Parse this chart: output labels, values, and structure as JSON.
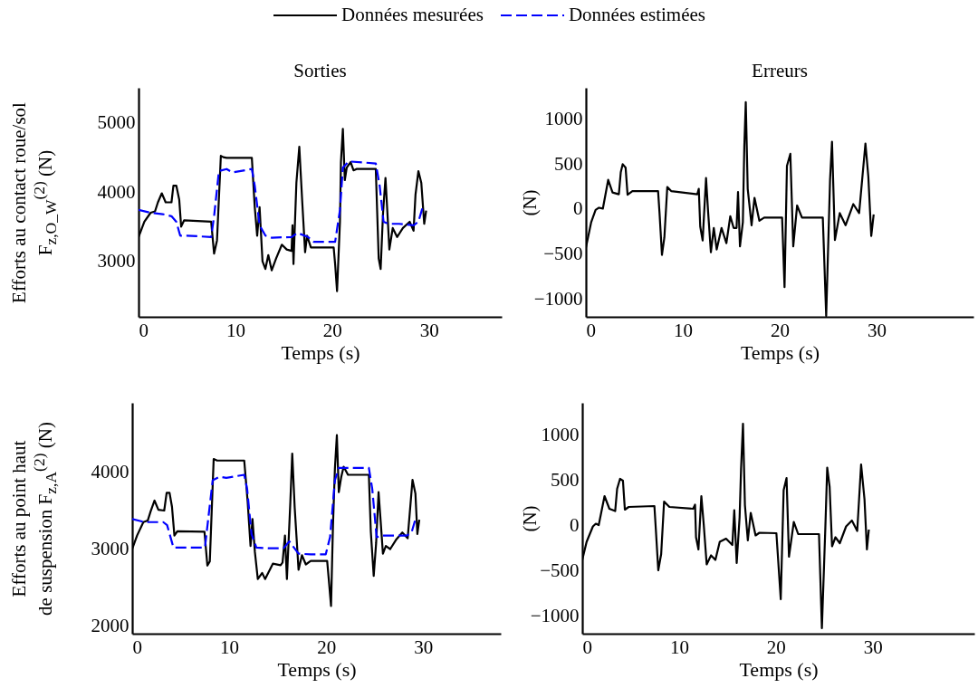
{
  "chart_data": [
    {
      "type": "line",
      "title": "Sorties",
      "xlabel": "Temps (s)",
      "ylabel": "Efforts au contact roue/sol\nF$_{z,O_W}$$^{(2)}$ (N)",
      "xlim": [
        0,
        37.5
      ],
      "xticks": [
        0,
        10,
        20,
        30
      ],
      "ylim": [
        2200,
        5500
      ],
      "yticks": [
        3000,
        4000,
        5000
      ],
      "grid": false,
      "legend": "top",
      "series": [
        {
          "name": "Données mesurées",
          "color": "#000000",
          "line_style": "solid",
          "x": [
            0,
            0.6,
            1.25,
            1.7,
            2.0,
            2.4,
            2.8,
            3.4,
            3.6,
            3.9,
            4.2,
            4.4,
            4.7,
            7.5,
            7.8,
            8.1,
            8.5,
            8.75,
            9.1,
            11.7,
            12.0,
            12.25,
            12.5,
            12.8,
            13.1,
            13.4,
            13.75,
            14.2,
            14.8,
            15.3,
            15.8,
            15.9,
            16.0,
            16.3,
            16.6,
            16.9,
            17.2,
            17.4,
            17.8,
            18.3,
            20.15,
            20.3,
            20.5,
            20.8,
            20.9,
            21.1,
            21.3,
            21.5,
            21.9,
            22.2,
            22.5,
            24.5,
            24.8,
            25.0,
            25.25,
            25.5,
            25.7,
            25.9,
            26.25,
            26.7,
            27.3,
            28.0,
            28.4,
            28.6,
            28.9,
            29.2,
            29.5,
            29.7
          ],
          "values": [
            3350,
            3570,
            3700,
            3720,
            3850,
            3980,
            3850,
            3850,
            4090,
            4090,
            3890,
            3500,
            3590,
            3570,
            3110,
            3300,
            4520,
            4500,
            4490,
            4490,
            3780,
            3370,
            3780,
            3000,
            2890,
            3090,
            2870,
            3040,
            3240,
            3170,
            3150,
            3520,
            2960,
            4130,
            4650,
            3870,
            3130,
            3370,
            3200,
            3200,
            3200,
            2960,
            2570,
            3570,
            4430,
            4910,
            4170,
            4350,
            4430,
            4310,
            4330,
            4330,
            3040,
            2890,
            3700,
            4200,
            3700,
            3170,
            3480,
            3350,
            3480,
            3570,
            3440,
            3960,
            4300,
            4130,
            3540,
            3730
          ]
        },
        {
          "name": "Données estimées",
          "color": "#0000ff",
          "line_style": "dashed",
          "x": [
            0,
            1.25,
            2.5,
            3.4,
            3.9,
            4.3,
            5,
            7.5,
            7.8,
            8.3,
            9.1,
            9.7,
            11.7,
            12.0,
            12.5,
            13.1,
            13.75,
            15.8,
            16.4,
            17.5,
            18.1,
            20.3,
            20.8,
            21.1,
            21.7,
            24.5,
            24.9,
            25.3,
            25.8,
            26.9,
            28.4,
            28.9,
            29.3
          ],
          "values": [
            3740,
            3700,
            3680,
            3650,
            3570,
            3370,
            3370,
            3350,
            3650,
            4300,
            4330,
            4280,
            4330,
            4090,
            3520,
            3370,
            3340,
            3350,
            3410,
            3350,
            3280,
            3280,
            3740,
            4350,
            4440,
            4410,
            4090,
            3570,
            3540,
            3540,
            3520,
            3570,
            3760
          ]
        }
      ]
    },
    {
      "type": "line",
      "title": "Erreurs",
      "xlabel": "Temps (s)",
      "ylabel": "(N)",
      "xlim": [
        0,
        40
      ],
      "xticks": [
        0,
        10,
        20,
        30
      ],
      "ylim": [
        -1200,
        1350
      ],
      "yticks": [
        -1000,
        -500,
        0,
        500,
        1000
      ],
      "grid": false,
      "series": [
        {
          "color": "#000000",
          "line_style": "solid",
          "x": [
            0,
            0.55,
            1.0,
            1.35,
            1.75,
            2.3,
            2.75,
            3.4,
            3.6,
            3.8,
            4.1,
            4.3,
            4.8,
            7.45,
            7.6,
            7.85,
            8.1,
            8.4,
            8.8,
            11.5,
            11.65,
            11.8,
            12.05,
            12.4,
            12.6,
            12.9,
            13.2,
            13.5,
            14.0,
            14.5,
            14.9,
            15.25,
            15.55,
            15.7,
            15.9,
            16.2,
            16.35,
            16.5,
            16.7,
            17.1,
            17.4,
            17.9,
            18.4,
            20.25,
            20.5,
            20.75,
            21.1,
            21.4,
            21.8,
            22.3,
            24.45,
            24.8,
            25.2,
            25.4,
            25.7,
            26.2,
            26.8,
            27.6,
            28.2,
            28.85,
            29.15,
            29.45,
            29.7
          ],
          "values": [
            -430,
            -145,
            -10,
            15,
            5,
            325,
            185,
            165,
            410,
            500,
            460,
            160,
            200,
            200,
            -45,
            -510,
            -315,
            245,
            200,
            165,
            225,
            -195,
            -350,
            345,
            -10,
            -480,
            -210,
            -450,
            -210,
            -380,
            -80,
            -210,
            -210,
            190,
            -415,
            -145,
            700,
            1190,
            225,
            -180,
            125,
            -130,
            -95,
            -95,
            -870,
            480,
            615,
            -415,
            40,
            -95,
            -95,
            -1190,
            330,
            750,
            -345,
            -45,
            -180,
            55,
            -45,
            730,
            360,
            -300,
            -60
          ]
        }
      ]
    },
    {
      "type": "line",
      "xlabel": "Temps (s)",
      "ylabel": "Efforts au point haut\nde suspension F$_{z,A}$$^{(2)}$ (N)",
      "xlim": [
        0,
        38
      ],
      "xticks": [
        0,
        10,
        20,
        30
      ],
      "ylim": [
        1900,
        4900
      ],
      "yticks": [
        2000,
        3000,
        4000
      ],
      "grid": false,
      "series": [
        {
          "color": "#000000",
          "line_style": "solid",
          "x": [
            0,
            0.5,
            1.15,
            1.6,
            1.9,
            2.3,
            2.7,
            3.3,
            3.55,
            3.85,
            4.1,
            4.35,
            4.65,
            7.45,
            7.75,
            8.0,
            8.4,
            8.75,
            11.55,
            11.9,
            12.2,
            12.4,
            12.65,
            12.95,
            13.4,
            13.7,
            14.5,
            15.3,
            15.5,
            15.75,
            15.95,
            16.3,
            16.5,
            16.75,
            17.15,
            17.5,
            17.9,
            18.4,
            20.1,
            20.25,
            20.5,
            20.7,
            20.9,
            21.1,
            21.3,
            21.55,
            21.8,
            22.25,
            24.4,
            24.6,
            24.9,
            25.15,
            25.4,
            25.6,
            25.85,
            26.15,
            26.6,
            27.2,
            27.85,
            28.4,
            28.9,
            29.2,
            29.4,
            29.6
          ],
          "values": [
            3000,
            3175,
            3350,
            3370,
            3490,
            3630,
            3510,
            3500,
            3730,
            3730,
            3550,
            3175,
            3230,
            3225,
            2785,
            2840,
            4170,
            4150,
            4150,
            3620,
            3040,
            3390,
            2960,
            2610,
            2690,
            2610,
            2810,
            2790,
            2825,
            3175,
            2610,
            3600,
            4240,
            3545,
            2730,
            2920,
            2800,
            2845,
            2845,
            2630,
            2260,
            3310,
            4050,
            4480,
            3740,
            3935,
            4070,
            3965,
            3965,
            3230,
            2650,
            3080,
            3740,
            3390,
            2940,
            3040,
            3000,
            3120,
            3215,
            3140,
            3900,
            3720,
            3195,
            3380
          ]
        },
        {
          "color": "#0000ff",
          "line_style": "dashed",
          "x": [
            0,
            1.3,
            3.2,
            3.6,
            4.25,
            4.7,
            7.5,
            7.8,
            8.3,
            9.05,
            9.7,
            11.55,
            11.85,
            12.3,
            12.8,
            14.0,
            15.6,
            16.2,
            17.15,
            18.4,
            19.95,
            20.4,
            20.9,
            21.3,
            24.4,
            24.75,
            25.2,
            25.85,
            28.3,
            28.8,
            29.25
          ],
          "values": [
            3390,
            3350,
            3350,
            3310,
            3020,
            3020,
            3020,
            3350,
            3895,
            3940,
            3925,
            3965,
            3780,
            3195,
            3020,
            3010,
            3010,
            3100,
            2940,
            2930,
            2930,
            3155,
            3895,
            4055,
            4055,
            3780,
            3155,
            3175,
            3175,
            3215,
            3410
          ]
        }
      ]
    },
    {
      "type": "line",
      "xlabel": "Temps (s)",
      "ylabel": "(N)",
      "xlim": [
        0,
        40.5
      ],
      "xticks": [
        0,
        10,
        20,
        30
      ],
      "ylim": [
        -1200,
        1350
      ],
      "yticks": [
        -1000,
        -500,
        0,
        500,
        1000
      ],
      "grid": false,
      "series": [
        {
          "color": "#000000",
          "line_style": "solid",
          "x": [
            0,
            0.45,
            1.1,
            1.4,
            1.7,
            2.3,
            2.8,
            3.4,
            3.6,
            3.9,
            4.2,
            4.4,
            4.8,
            7.45,
            7.6,
            7.85,
            8.15,
            8.45,
            9.0,
            11.45,
            11.65,
            11.75,
            12.0,
            12.3,
            12.55,
            12.85,
            13.3,
            13.75,
            14.2,
            14.85,
            15.5,
            15.7,
            15.95,
            16.25,
            16.4,
            16.6,
            16.8,
            17.1,
            17.4,
            17.9,
            18.3,
            20.05,
            20.5,
            20.8,
            21.1,
            21.35,
            21.85,
            22.3,
            24.45,
            24.75,
            25.1,
            25.3,
            25.55,
            25.8,
            26.15,
            26.6,
            27.25,
            27.85,
            28.4,
            28.8,
            29.15,
            29.4,
            29.6
          ],
          "values": [
            -385,
            -185,
            -15,
            15,
            0,
            320,
            180,
            155,
            400,
            510,
            490,
            170,
            200,
            210,
            -50,
            -500,
            -320,
            260,
            200,
            180,
            225,
            -135,
            -270,
            320,
            0,
            -435,
            -335,
            -385,
            -185,
            -150,
            -220,
            165,
            -420,
            85,
            620,
            1120,
            220,
            -170,
            135,
            -115,
            -85,
            -90,
            -820,
            385,
            520,
            -350,
            35,
            -100,
            -100,
            -1140,
            -50,
            635,
            420,
            -235,
            -135,
            -200,
            -15,
            50,
            -65,
            670,
            285,
            -270,
            -50
          ]
        }
      ]
    }
  ]
}
